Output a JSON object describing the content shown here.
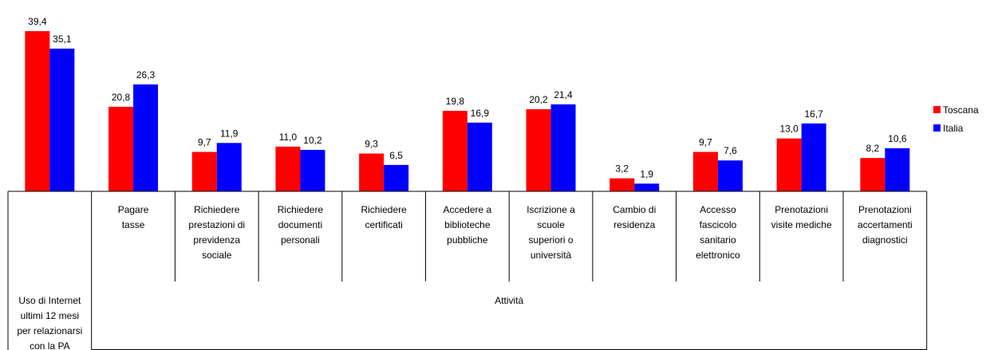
{
  "chart_data": {
    "type": "bar",
    "categories": [
      [
        "Uso di  Internet",
        "ultimi 12 mesi",
        "per relazionarsi",
        "con la PA"
      ],
      [
        "Pagare",
        "tasse"
      ],
      [
        "Richiedere",
        "prestazioni di",
        "previdenza",
        "sociale"
      ],
      [
        "Richiedere",
        "documenti",
        "personali"
      ],
      [
        "Richiedere",
        "certificati"
      ],
      [
        "Accedere a",
        "biblioteche",
        "pubbliche"
      ],
      [
        "Iscrizione a",
        "scuole",
        "superiori o",
        "università"
      ],
      [
        "Cambio di",
        "residenza"
      ],
      [
        "Accesso",
        "fascicolo",
        "sanitario",
        "elettronico"
      ],
      [
        "Prenotazioni",
        "visite mediche"
      ],
      [
        "Prenotazioni",
        "accertamenti",
        "diagnostici"
      ]
    ],
    "group_label": "Attività",
    "series": [
      {
        "name": "Toscana",
        "color": "#ff0000",
        "values": [
          39.4,
          20.8,
          9.7,
          11.0,
          9.3,
          19.8,
          20.2,
          3.2,
          9.7,
          13.0,
          8.2
        ],
        "labels": [
          "39,4",
          "20,8",
          "9,7",
          "11,0",
          "9,3",
          "19,8",
          "20,2",
          "3,2",
          "9,7",
          "13,0",
          "8,2"
        ]
      },
      {
        "name": "Italia",
        "color": "#0000ff",
        "values": [
          35.1,
          26.3,
          11.9,
          10.2,
          6.5,
          16.9,
          21.4,
          1.9,
          7.6,
          16.7,
          10.6
        ],
        "labels": [
          "35,1",
          "26,3",
          "11,9",
          "10,2",
          "6,5",
          "16,9",
          "21,4",
          "1,9",
          "7,6",
          "16,7",
          "10,6"
        ]
      }
    ],
    "ylim": [
      0,
      40
    ],
    "legend": "right"
  }
}
